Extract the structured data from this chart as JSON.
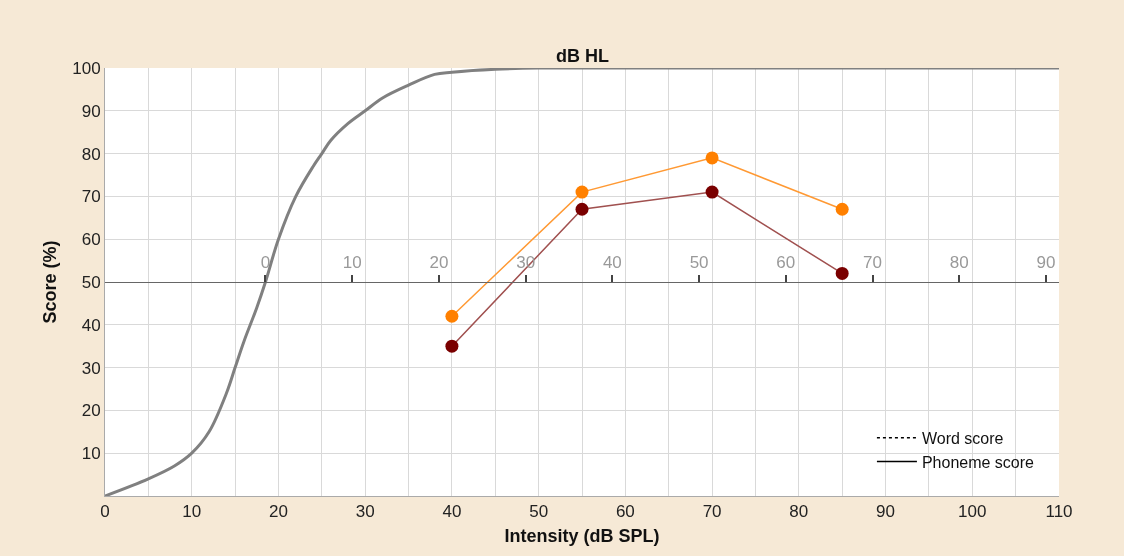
{
  "chart_data": {
    "type": "line",
    "x2label": "dB HL",
    "xlabel": "Intensity (dB SPL)",
    "ylabel": "Score (%)",
    "x": [
      40,
      55,
      70,
      85
    ],
    "series": [
      {
        "color": "#ff9933",
        "values": [
          42,
          71,
          79,
          67
        ],
        "marker": "circle",
        "colors": [
          "#ff8000",
          "#ff8000",
          "#ff8000",
          "#ff8000"
        ]
      },
      {
        "color": "#a0504f",
        "values": [
          35,
          67,
          71,
          52
        ],
        "marker": "circle",
        "colors": [
          "#7a0000",
          "#7a0000",
          "#7a0000",
          "#7a0000"
        ]
      },
      {
        "color": "#808080",
        "marker": "none",
        "x": [
          0,
          5,
          8,
          10,
          12,
          14,
          15,
          16,
          17.5,
          18.5,
          20,
          22,
          24,
          25,
          26,
          28,
          30,
          32,
          35,
          38,
          40,
          45,
          50,
          110
        ],
        "values": [
          0,
          4,
          7,
          10,
          15,
          24,
          30,
          36,
          44,
          50,
          60,
          70,
          77,
          80,
          83,
          87,
          90,
          93,
          96,
          98.5,
          99,
          99.7,
          100,
          100
        ]
      },
      {
        "name": "Word score",
        "color": "#000000",
        "line_style": "dotted",
        "marker": "none",
        "values": [
          null,
          null,
          null,
          null
        ]
      },
      {
        "name": "Phoneme score",
        "color": "#000000",
        "line_style": "solid",
        "marker": "none",
        "values": [
          null,
          null,
          null,
          null
        ]
      }
    ],
    "xlim": [
      0,
      110
    ],
    "xticks": [
      0,
      10,
      20,
      30,
      40,
      50,
      60,
      70,
      80,
      90,
      100,
      110
    ],
    "ylim": [
      0,
      100
    ],
    "yticks": [
      {
        "value": 0,
        "label": null
      },
      10,
      20,
      30,
      40,
      50,
      60,
      70,
      80,
      90,
      100
    ],
    "x2lim": [
      -18.5,
      91.5
    ],
    "x2ticks": [
      0,
      10,
      20,
      30,
      40,
      50,
      60,
      70,
      80,
      90
    ],
    "grid": true,
    "legend": "bottom right",
    "line_style": "solid"
  }
}
